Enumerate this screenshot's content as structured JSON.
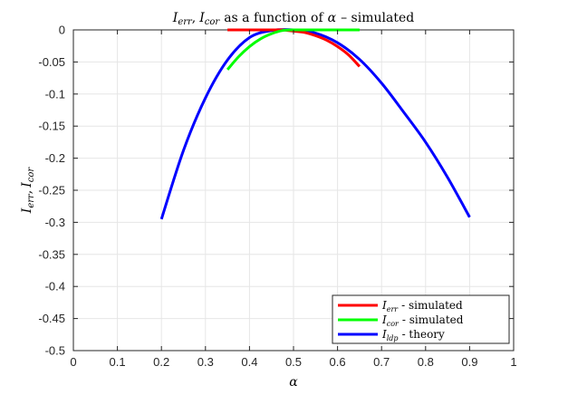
{
  "chart_data": {
    "type": "line",
    "title": {
      "var1": "I",
      "var1_sub": "err",
      "sep": ",",
      "var2": "I",
      "var2_sub": "cor",
      "rest1": "as a function of",
      "symbol": "α",
      "rest2": "– simulated"
    },
    "xlabel": "α",
    "ylabel": {
      "var1": "I",
      "var1_sub": "err",
      "sep": ",",
      "var2": "I",
      "var2_sub": "cor"
    },
    "xlim": [
      0,
      1
    ],
    "ylim": [
      -0.5,
      0
    ],
    "xticks": [
      "0",
      "0.1",
      "0.2",
      "0.3",
      "0.4",
      "0.5",
      "0.6",
      "0.7",
      "0.8",
      "0.9",
      "1"
    ],
    "xtick_values": [
      0,
      0.1,
      0.2,
      0.3,
      0.4,
      0.5,
      0.6,
      0.7,
      0.8,
      0.9,
      1
    ],
    "yticks": [
      "0",
      "-0.05",
      "-0.1",
      "-0.15",
      "-0.2",
      "-0.25",
      "-0.3",
      "-0.35",
      "-0.4",
      "-0.45",
      "-0.5"
    ],
    "ytick_values": [
      0,
      -0.05,
      -0.1,
      -0.15,
      -0.2,
      -0.25,
      -0.3,
      -0.35,
      -0.4,
      -0.45,
      -0.5
    ],
    "grid": true,
    "legend_position": "bottom-right",
    "series": [
      {
        "name": "I_err - simulated",
        "legend": {
          "var": "I",
          "sub": "err",
          "text": "- simulated"
        },
        "color": "#ff0000",
        "x": [
          0.35,
          0.375,
          0.4,
          0.425,
          0.45,
          0.475,
          0.5,
          0.525,
          0.55,
          0.575,
          0.6,
          0.625,
          0.65
        ],
        "y": [
          0,
          0,
          0,
          0,
          0,
          0,
          -0.002,
          -0.004,
          -0.009,
          -0.016,
          -0.026,
          -0.039,
          -0.057
        ]
      },
      {
        "name": "I_cor - simulated",
        "legend": {
          "var": "I",
          "sub": "cor",
          "text": "- simulated"
        },
        "color": "#00ff00",
        "x": [
          0.35,
          0.375,
          0.4,
          0.425,
          0.45,
          0.475,
          0.5,
          0.525,
          0.55,
          0.575,
          0.6,
          0.625,
          0.65
        ],
        "y": [
          -0.062,
          -0.042,
          -0.026,
          -0.014,
          -0.006,
          -0.001,
          0,
          0,
          0,
          0,
          0,
          0,
          0
        ]
      },
      {
        "name": "I_ldp - theory",
        "legend": {
          "var": "I",
          "sub": "ldp",
          "text": "- theory"
        },
        "color": "#0000ff",
        "x": [
          0.2,
          0.25,
          0.3,
          0.35,
          0.4,
          0.45,
          0.5,
          0.55,
          0.6,
          0.65,
          0.7,
          0.75,
          0.8,
          0.85,
          0.9
        ],
        "y": [
          -0.295,
          -0.188,
          -0.106,
          -0.047,
          -0.012,
          -0.001,
          0,
          -0.005,
          -0.02,
          -0.046,
          -0.083,
          -0.128,
          -0.175,
          -0.23,
          -0.292
        ]
      }
    ]
  }
}
